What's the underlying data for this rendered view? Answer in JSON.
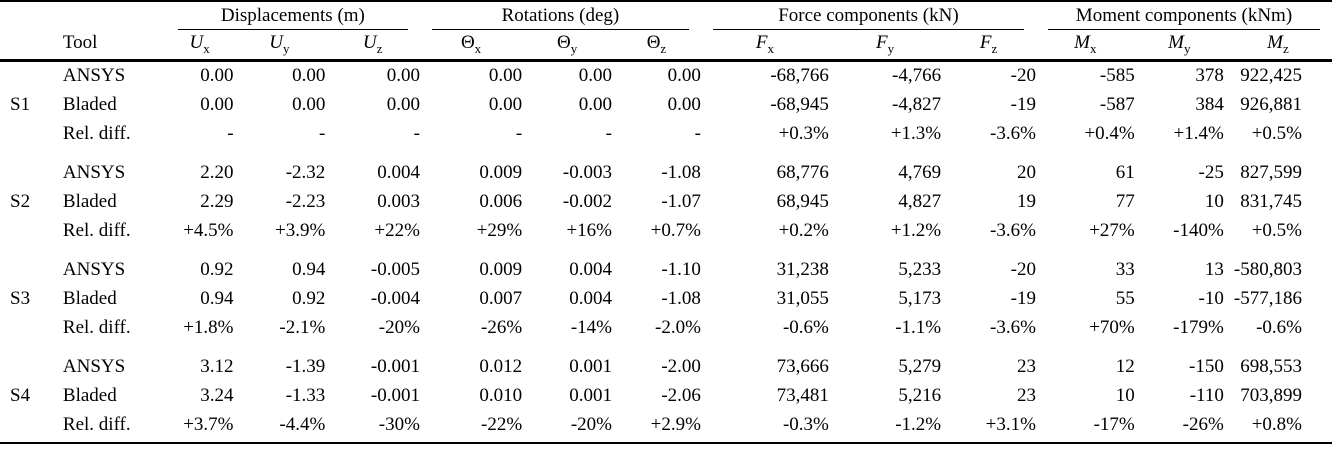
{
  "table": {
    "tool_header": "Tool",
    "groups": [
      {
        "label": "Displacements (m)"
      },
      {
        "label": "Rotations (deg)"
      },
      {
        "label": "Force components (kN)"
      },
      {
        "label": "Moment components (kNm)"
      }
    ],
    "columns": [
      {
        "base": "U",
        "sub": "x",
        "italic_base": true
      },
      {
        "base": "U",
        "sub": "y",
        "italic_base": true
      },
      {
        "base": "U",
        "sub": "z",
        "italic_base": true
      },
      {
        "base": "Θ",
        "sub": "x",
        "italic_base": false
      },
      {
        "base": "Θ",
        "sub": "y",
        "italic_base": false
      },
      {
        "base": "Θ",
        "sub": "z",
        "italic_base": false
      },
      {
        "base": "F",
        "sub": "x",
        "italic_base": true
      },
      {
        "base": "F",
        "sub": "y",
        "italic_base": true
      },
      {
        "base": "F",
        "sub": "z",
        "italic_base": true
      },
      {
        "base": "M",
        "sub": "x",
        "italic_base": true
      },
      {
        "base": "M",
        "sub": "y",
        "italic_base": true
      },
      {
        "base": "M",
        "sub": "z",
        "italic_base": true
      }
    ],
    "sections": [
      {
        "id": "S1",
        "rows": [
          {
            "tool": "ANSYS",
            "values": [
              "0.00",
              "0.00",
              "0.00",
              "0.00",
              "0.00",
              "0.00",
              "-68,766",
              "-4,766",
              "-20",
              "-585",
              "378",
              "922,425"
            ]
          },
          {
            "tool": "Bladed",
            "values": [
              "0.00",
              "0.00",
              "0.00",
              "0.00",
              "0.00",
              "0.00",
              "-68,945",
              "-4,827",
              "-19",
              "-587",
              "384",
              "926,881"
            ]
          },
          {
            "tool": "Rel. diff.",
            "values": [
              "-",
              "-",
              "-",
              "-",
              "-",
              "-",
              "+0.3%",
              "+1.3%",
              "-3.6%",
              "+0.4%",
              "+1.4%",
              "+0.5%"
            ]
          }
        ]
      },
      {
        "id": "S2",
        "rows": [
          {
            "tool": "ANSYS",
            "values": [
              "2.20",
              "-2.32",
              "0.004",
              "0.009",
              "-0.003",
              "-1.08",
              "68,776",
              "4,769",
              "20",
              "61",
              "-25",
              "827,599"
            ]
          },
          {
            "tool": "Bladed",
            "values": [
              "2.29",
              "-2.23",
              "0.003",
              "0.006",
              "-0.002",
              "-1.07",
              "68,945",
              "4,827",
              "19",
              "77",
              "10",
              "831,745"
            ]
          },
          {
            "tool": "Rel. diff.",
            "values": [
              "+4.5%",
              "+3.9%",
              "+22%",
              "+29%",
              "+16%",
              "+0.7%",
              "+0.2%",
              "+1.2%",
              "-3.6%",
              "+27%",
              "-140%",
              "+0.5%"
            ]
          }
        ]
      },
      {
        "id": "S3",
        "rows": [
          {
            "tool": "ANSYS",
            "values": [
              "0.92",
              "0.94",
              "-0.005",
              "0.009",
              "0.004",
              "-1.10",
              "31,238",
              "5,233",
              "-20",
              "33",
              "13",
              "-580,803"
            ]
          },
          {
            "tool": "Bladed",
            "values": [
              "0.94",
              "0.92",
              "-0.004",
              "0.007",
              "0.004",
              "-1.08",
              "31,055",
              "5,173",
              "-19",
              "55",
              "-10",
              "-577,186"
            ]
          },
          {
            "tool": "Rel. diff.",
            "values": [
              "+1.8%",
              "-2.1%",
              "-20%",
              "-26%",
              "-14%",
              "-2.0%",
              "-0.6%",
              "-1.1%",
              "-3.6%",
              "+70%",
              "-179%",
              "-0.6%"
            ]
          }
        ]
      },
      {
        "id": "S4",
        "rows": [
          {
            "tool": "ANSYS",
            "values": [
              "3.12",
              "-1.39",
              "-0.001",
              "0.012",
              "0.001",
              "-2.00",
              "73,666",
              "5,279",
              "23",
              "12",
              "-150",
              "698,553"
            ]
          },
          {
            "tool": "Bladed",
            "values": [
              "3.24",
              "-1.33",
              "-0.001",
              "0.010",
              "0.001",
              "-2.06",
              "73,481",
              "5,216",
              "23",
              "10",
              "-110",
              "703,899"
            ]
          },
          {
            "tool": "Rel. diff.",
            "values": [
              "+3.7%",
              "-4.4%",
              "-30%",
              "-22%",
              "-20%",
              "+2.9%",
              "-0.3%",
              "-1.2%",
              "+3.1%",
              "-17%",
              "-26%",
              "+0.8%"
            ]
          }
        ]
      }
    ]
  }
}
